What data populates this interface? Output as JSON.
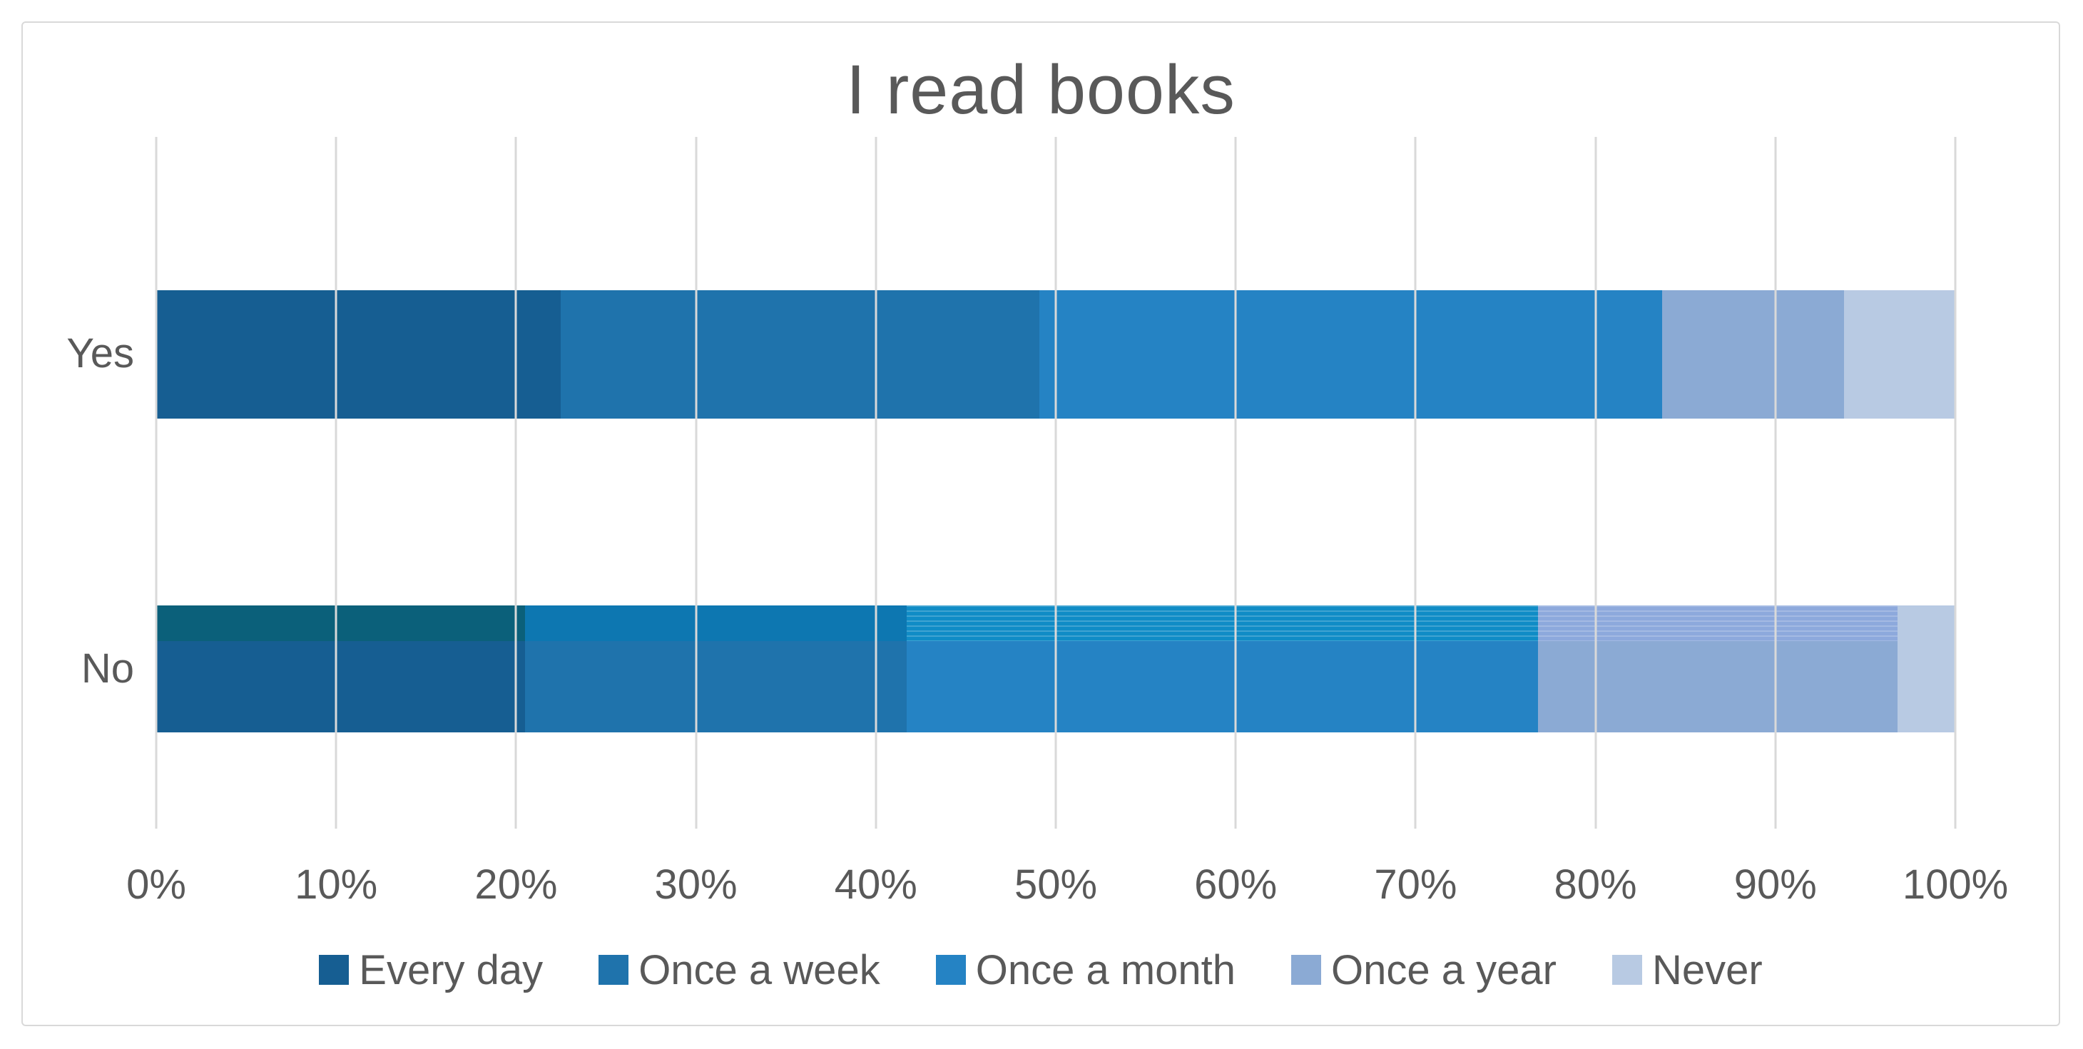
{
  "chart_data": {
    "type": "bar",
    "variant": "100%-stacked-horizontal",
    "title": "I read books",
    "categories": [
      "Yes",
      "No"
    ],
    "series": [
      {
        "name": "Every day",
        "color": "#165E92",
        "values": [
          22.5,
          20.5
        ]
      },
      {
        "name": "Once a week",
        "color": "#1F73AC",
        "values": [
          26.6,
          21.2
        ]
      },
      {
        "name": "Once a month",
        "color": "#2583C4",
        "values": [
          34.6,
          35.1
        ]
      },
      {
        "name": "Once a year",
        "color": "#8BAAD4",
        "values": [
          10.1,
          20.0
        ]
      },
      {
        "name": "Never",
        "color": "#B8CAE3",
        "values": [
          6.2,
          3.2
        ]
      }
    ],
    "x_ticks": [
      "0%",
      "10%",
      "20%",
      "30%",
      "40%",
      "50%",
      "60%",
      "70%",
      "80%",
      "90%",
      "100%"
    ],
    "x_range": [
      0,
      100
    ],
    "gridlines": true,
    "legend_position": "bottom",
    "no_bar_overlay": {
      "note": "top strip of the No bar is rendered in slightly different shades, segments 3-4 with fine horizontal pinstripes",
      "height_fraction": 0.28,
      "colors": [
        "#0B607A",
        "#0D77B1",
        "#108CC6",
        "#8DA9DC",
        null
      ],
      "textured": [
        false,
        false,
        true,
        true,
        false
      ]
    }
  },
  "theme": {
    "background": "#FFFFFF",
    "border_color": "#D9D9D9",
    "gridline_color": "#D9D9D9",
    "text_color": "#595959"
  }
}
